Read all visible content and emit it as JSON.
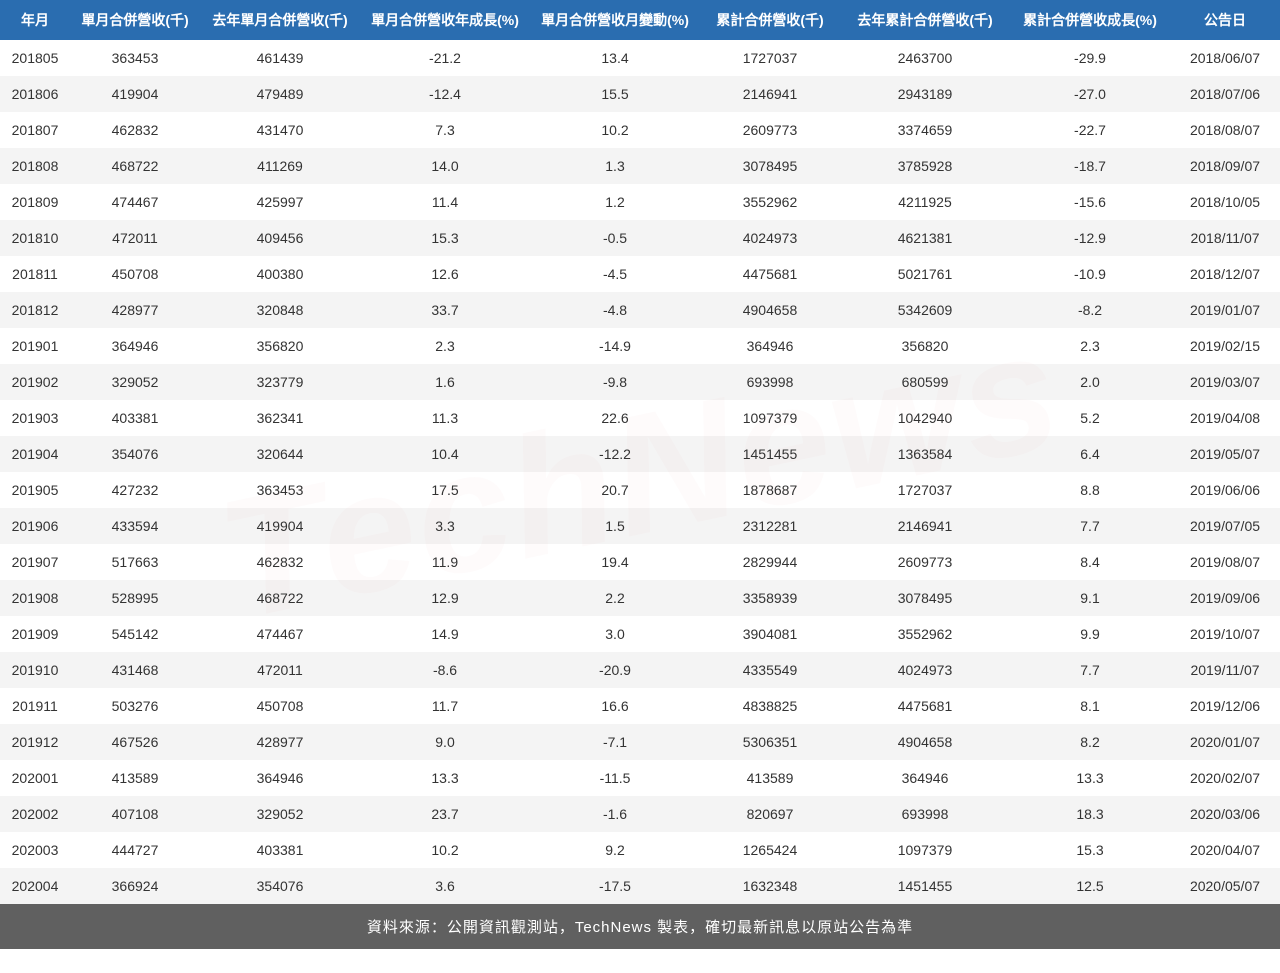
{
  "watermark_text": "TechNews",
  "colors": {
    "header_bg": "#2a6db0",
    "header_fg": "#ffffff",
    "row_even_bg": "#f2f2f2",
    "row_odd_bg": "#ffffff",
    "footer_bg": "#606060",
    "footer_fg": "#ffffff",
    "text": "#333333",
    "watermark": "rgba(200,30,40,0.12)"
  },
  "table": {
    "type": "table",
    "columns": [
      "年月",
      "單月合併營收(千)",
      "去年單月合併營收(千)",
      "單月合併營收年成長(%)",
      "單月合併營收月變動(%)",
      "累計合併營收(千)",
      "去年累計合併營收(千)",
      "累計合併營收成長(%)",
      "公告日"
    ],
    "rows": [
      [
        "201805",
        "363453",
        "461439",
        "-21.2",
        "13.4",
        "1727037",
        "2463700",
        "-29.9",
        "2018/06/07"
      ],
      [
        "201806",
        "419904",
        "479489",
        "-12.4",
        "15.5",
        "2146941",
        "2943189",
        "-27.0",
        "2018/07/06"
      ],
      [
        "201807",
        "462832",
        "431470",
        "7.3",
        "10.2",
        "2609773",
        "3374659",
        "-22.7",
        "2018/08/07"
      ],
      [
        "201808",
        "468722",
        "411269",
        "14.0",
        "1.3",
        "3078495",
        "3785928",
        "-18.7",
        "2018/09/07"
      ],
      [
        "201809",
        "474467",
        "425997",
        "11.4",
        "1.2",
        "3552962",
        "4211925",
        "-15.6",
        "2018/10/05"
      ],
      [
        "201810",
        "472011",
        "409456",
        "15.3",
        "-0.5",
        "4024973",
        "4621381",
        "-12.9",
        "2018/11/07"
      ],
      [
        "201811",
        "450708",
        "400380",
        "12.6",
        "-4.5",
        "4475681",
        "5021761",
        "-10.9",
        "2018/12/07"
      ],
      [
        "201812",
        "428977",
        "320848",
        "33.7",
        "-4.8",
        "4904658",
        "5342609",
        "-8.2",
        "2019/01/07"
      ],
      [
        "201901",
        "364946",
        "356820",
        "2.3",
        "-14.9",
        "364946",
        "356820",
        "2.3",
        "2019/02/15"
      ],
      [
        "201902",
        "329052",
        "323779",
        "1.6",
        "-9.8",
        "693998",
        "680599",
        "2.0",
        "2019/03/07"
      ],
      [
        "201903",
        "403381",
        "362341",
        "11.3",
        "22.6",
        "1097379",
        "1042940",
        "5.2",
        "2019/04/08"
      ],
      [
        "201904",
        "354076",
        "320644",
        "10.4",
        "-12.2",
        "1451455",
        "1363584",
        "6.4",
        "2019/05/07"
      ],
      [
        "201905",
        "427232",
        "363453",
        "17.5",
        "20.7",
        "1878687",
        "1727037",
        "8.8",
        "2019/06/06"
      ],
      [
        "201906",
        "433594",
        "419904",
        "3.3",
        "1.5",
        "2312281",
        "2146941",
        "7.7",
        "2019/07/05"
      ],
      [
        "201907",
        "517663",
        "462832",
        "11.9",
        "19.4",
        "2829944",
        "2609773",
        "8.4",
        "2019/08/07"
      ],
      [
        "201908",
        "528995",
        "468722",
        "12.9",
        "2.2",
        "3358939",
        "3078495",
        "9.1",
        "2019/09/06"
      ],
      [
        "201909",
        "545142",
        "474467",
        "14.9",
        "3.0",
        "3904081",
        "3552962",
        "9.9",
        "2019/10/07"
      ],
      [
        "201910",
        "431468",
        "472011",
        "-8.6",
        "-20.9",
        "4335549",
        "4024973",
        "7.7",
        "2019/11/07"
      ],
      [
        "201911",
        "503276",
        "450708",
        "11.7",
        "16.6",
        "4838825",
        "4475681",
        "8.1",
        "2019/12/06"
      ],
      [
        "201912",
        "467526",
        "428977",
        "9.0",
        "-7.1",
        "5306351",
        "4904658",
        "8.2",
        "2020/01/07"
      ],
      [
        "202001",
        "413589",
        "364946",
        "13.3",
        "-11.5",
        "413589",
        "364946",
        "13.3",
        "2020/02/07"
      ],
      [
        "202002",
        "407108",
        "329052",
        "23.7",
        "-1.6",
        "820697",
        "693998",
        "18.3",
        "2020/03/06"
      ],
      [
        "202003",
        "444727",
        "403381",
        "10.2",
        "9.2",
        "1265424",
        "1097379",
        "15.3",
        "2020/04/07"
      ],
      [
        "202004",
        "366924",
        "354076",
        "3.6",
        "-17.5",
        "1632348",
        "1451455",
        "12.5",
        "2020/05/07"
      ]
    ],
    "footer": "資料來源：公開資訊觀測站，TechNews 製表，確切最新訊息以原站公告為準"
  }
}
